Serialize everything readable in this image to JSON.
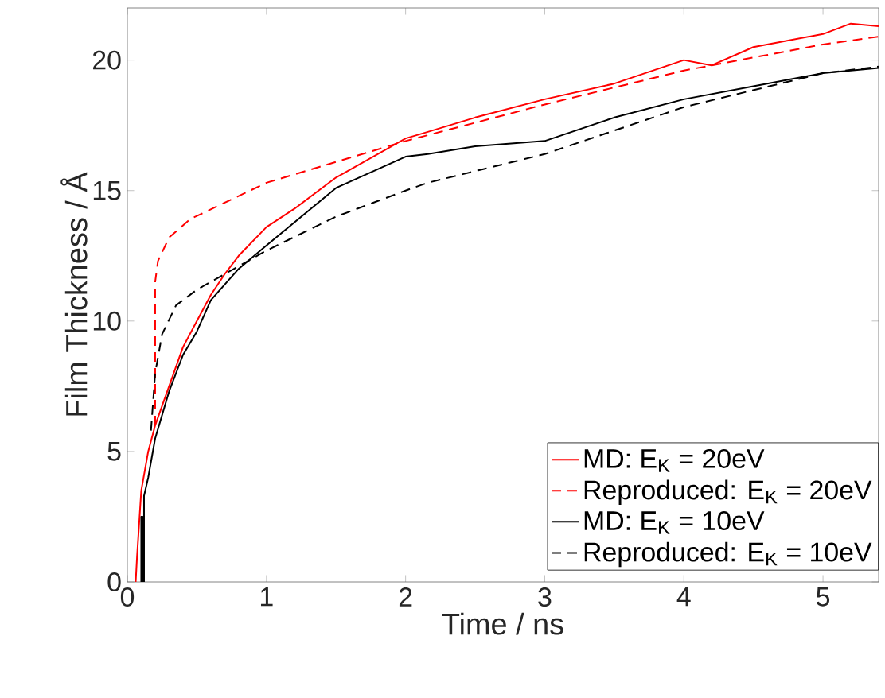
{
  "chart_data": {
    "type": "line",
    "xlabel": "Time / ns",
    "ylabel": "Film Thickness / Å",
    "xlim": [
      0,
      5.4
    ],
    "ylim": [
      0,
      22
    ],
    "xticks": [
      0,
      1,
      2,
      3,
      4,
      5
    ],
    "yticks": [
      0,
      5,
      10,
      15,
      20
    ],
    "legend": "bottom right",
    "grid": false,
    "series": [
      {
        "name": "MD: E$_{K}$ = 20eV",
        "color": "#ff0000",
        "line_style": "solid",
        "x": [
          0.06,
          0.07,
          0.1,
          0.15,
          0.2,
          0.3,
          0.4,
          0.5,
          0.6,
          0.7,
          0.8,
          1.0,
          1.2,
          1.5,
          2.0,
          2.16,
          2.5,
          3.0,
          3.5,
          4.0,
          4.2,
          4.5,
          5.0,
          5.2,
          5.4
        ],
        "values": [
          0,
          1,
          3.5,
          5,
          6,
          7.5,
          9,
          10,
          11,
          11.8,
          12.5,
          13.6,
          14.3,
          15.5,
          17.0,
          17.25,
          17.8,
          18.5,
          19.1,
          20.0,
          19.8,
          20.5,
          21.0,
          21.4,
          21.3
        ]
      },
      {
        "name": "Reproduced: E$_{K}$ = 20eV",
        "color": "#ff0000",
        "line_style": "dashed",
        "x": [
          0.2,
          0.2,
          0.22,
          0.3,
          0.45,
          1.0,
          2.0,
          3.0,
          4.0,
          5.0,
          5.4
        ],
        "values": [
          6,
          11.5,
          12.3,
          13.2,
          13.9,
          15.3,
          16.9,
          18.3,
          19.6,
          20.6,
          20.9
        ]
      },
      {
        "name": "MD: E$_{K}$ = 10eV",
        "color": "#000000",
        "line_style": "solid",
        "x": [
          0.1,
          0.1,
          0.11,
          0.11,
          0.12,
          0.12,
          0.15,
          0.2,
          0.3,
          0.4,
          0.5,
          0.6,
          0.8,
          1.0,
          1.5,
          2.0,
          2.16,
          2.5,
          3.0,
          3.5,
          4.0,
          4.5,
          5.0,
          5.4
        ],
        "values": [
          0,
          2.5,
          2.5,
          0,
          0,
          3.3,
          4,
          5.5,
          7.3,
          8.7,
          9.6,
          10.8,
          12,
          12.9,
          15.1,
          16.3,
          16.4,
          16.7,
          16.9,
          17.8,
          18.5,
          19.0,
          19.5,
          19.7
        ]
      },
      {
        "name": "Reproduced: E$_{K}$ = 10eV",
        "color": "#000000",
        "line_style": "dashed",
        "x": [
          0.17,
          0.2,
          0.25,
          0.35,
          0.5,
          0.7,
          1.0,
          1.5,
          2.0,
          2.16,
          3.0,
          4.0,
          5.0,
          5.4
        ],
        "values": [
          5.8,
          8,
          9.5,
          10.6,
          11.2,
          11.8,
          12.7,
          14.0,
          15.0,
          15.3,
          16.4,
          18.2,
          19.5,
          19.75
        ]
      }
    ]
  }
}
